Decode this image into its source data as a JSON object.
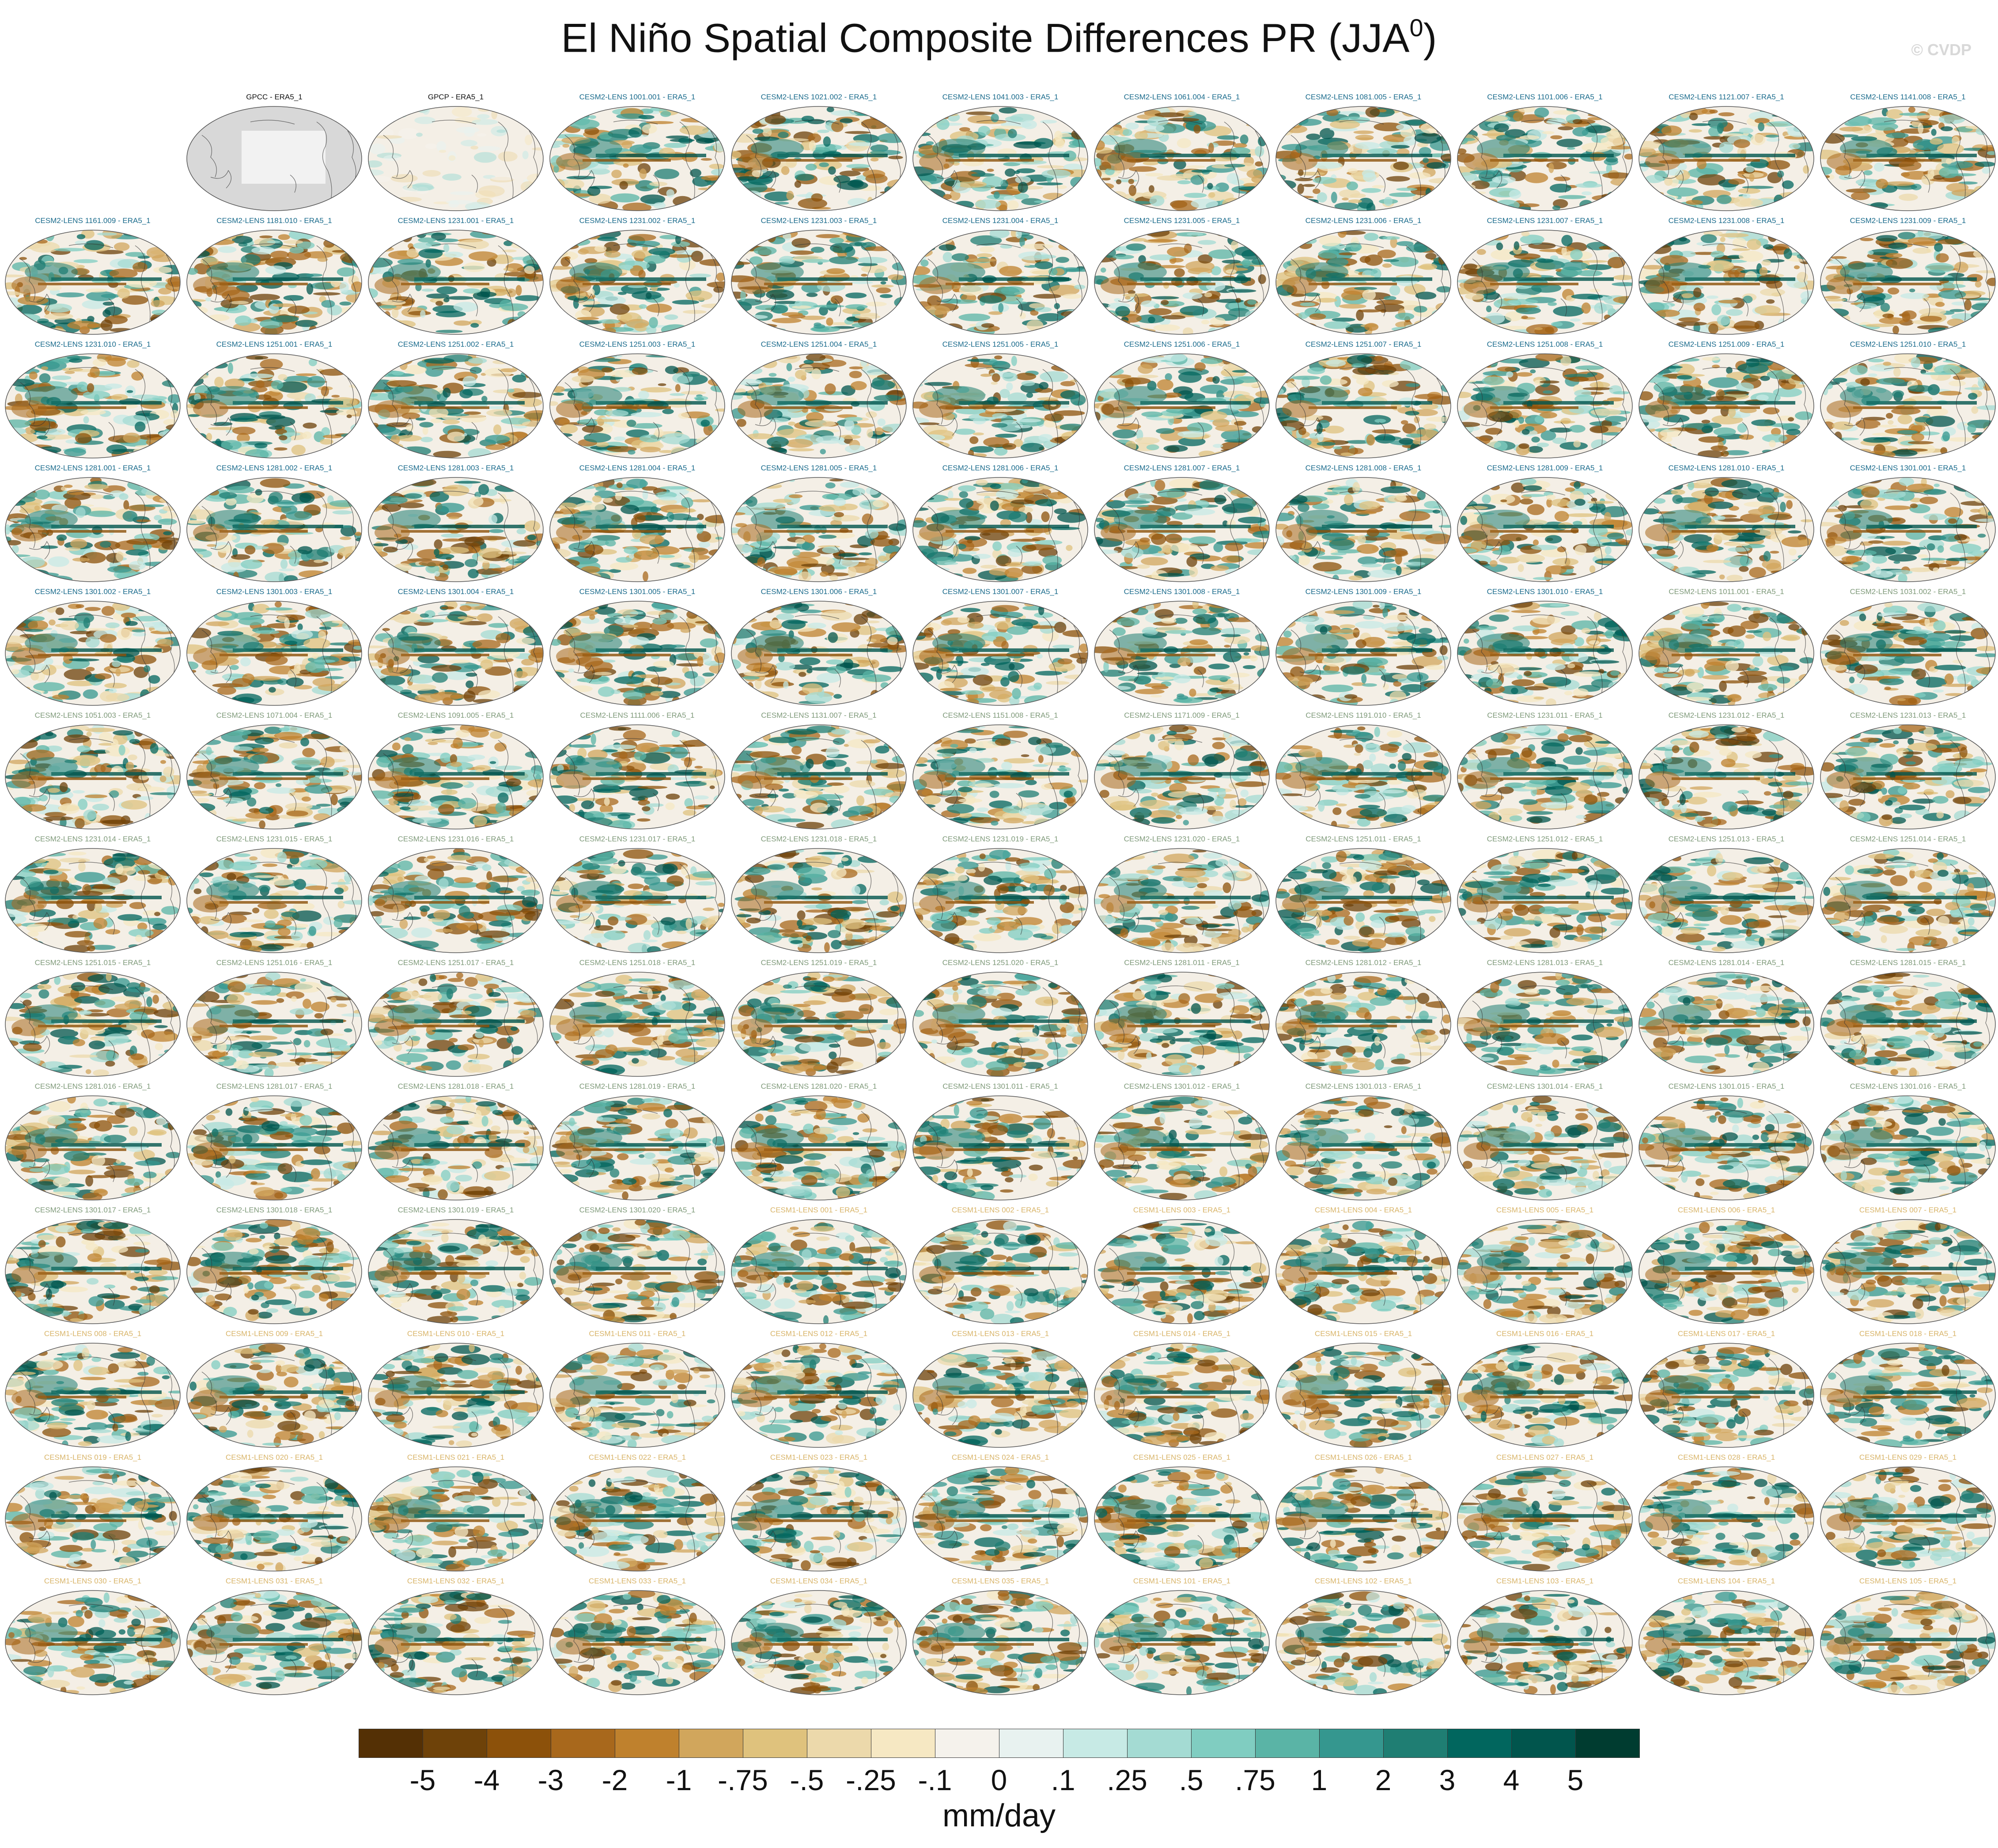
{
  "title": "El Niño Spatial Composite Differences PR (JJA",
  "title_superscript": "0",
  "title_suffix": ")",
  "watermark": "© CVDP",
  "colors": {
    "obs_title": "#111111",
    "cesm2_title": "#1a6b8c",
    "cesm2b_title": "#7f9a7a",
    "cesm1_title": "#d9b56a",
    "land": "#d8d8d8",
    "coast": "#333333",
    "map_bg": "#f4efe6"
  },
  "panels": [
    {
      "label": "GPCC - ERA5_1",
      "group": "obs",
      "style": "land"
    },
    {
      "label": "GPCP - ERA5_1",
      "group": "obs",
      "style": "obs"
    },
    {
      "label": "CESM2-LENS 1001.001 - ERA5_1",
      "group": "cesm2"
    },
    {
      "label": "CESM2-LENS 1021.002 - ERA5_1",
      "group": "cesm2"
    },
    {
      "label": "CESM2-LENS 1041.003 - ERA5_1",
      "group": "cesm2"
    },
    {
      "label": "CESM2-LENS 1061.004 - ERA5_1",
      "group": "cesm2"
    },
    {
      "label": "CESM2-LENS 1081.005 - ERA5_1",
      "group": "cesm2"
    },
    {
      "label": "CESM2-LENS 1101.006 - ERA5_1",
      "group": "cesm2"
    },
    {
      "label": "CESM2-LENS 1121.007 - ERA5_1",
      "group": "cesm2"
    },
    {
      "label": "CESM2-LENS 1141.008 - ERA5_1",
      "group": "cesm2"
    },
    {
      "label": "CESM2-LENS 1161.009 - ERA5_1",
      "group": "cesm2"
    },
    {
      "label": "CESM2-LENS 1181.010 - ERA5_1",
      "group": "cesm2"
    },
    {
      "label": "CESM2-LENS 1231.001 - ERA5_1",
      "group": "cesm2"
    },
    {
      "label": "CESM2-LENS 1231.002 - ERA5_1",
      "group": "cesm2"
    },
    {
      "label": "CESM2-LENS 1231.003 - ERA5_1",
      "group": "cesm2"
    },
    {
      "label": "CESM2-LENS 1231.004 - ERA5_1",
      "group": "cesm2"
    },
    {
      "label": "CESM2-LENS 1231.005 - ERA5_1",
      "group": "cesm2"
    },
    {
      "label": "CESM2-LENS 1231.006 - ERA5_1",
      "group": "cesm2"
    },
    {
      "label": "CESM2-LENS 1231.007 - ERA5_1",
      "group": "cesm2"
    },
    {
      "label": "CESM2-LENS 1231.008 - ERA5_1",
      "group": "cesm2"
    },
    {
      "label": "CESM2-LENS 1231.009 - ERA5_1",
      "group": "cesm2"
    },
    {
      "label": "CESM2-LENS 1231.010 - ERA5_1",
      "group": "cesm2"
    },
    {
      "label": "CESM2-LENS 1251.001 - ERA5_1",
      "group": "cesm2"
    },
    {
      "label": "CESM2-LENS 1251.002 - ERA5_1",
      "group": "cesm2"
    },
    {
      "label": "CESM2-LENS 1251.003 - ERA5_1",
      "group": "cesm2"
    },
    {
      "label": "CESM2-LENS 1251.004 - ERA5_1",
      "group": "cesm2"
    },
    {
      "label": "CESM2-LENS 1251.005 - ERA5_1",
      "group": "cesm2"
    },
    {
      "label": "CESM2-LENS 1251.006 - ERA5_1",
      "group": "cesm2"
    },
    {
      "label": "CESM2-LENS 1251.007 - ERA5_1",
      "group": "cesm2"
    },
    {
      "label": "CESM2-LENS 1251.008 - ERA5_1",
      "group": "cesm2"
    },
    {
      "label": "CESM2-LENS 1251.009 - ERA5_1",
      "group": "cesm2"
    },
    {
      "label": "CESM2-LENS 1251.010 - ERA5_1",
      "group": "cesm2"
    },
    {
      "label": "CESM2-LENS 1281.001 - ERA5_1",
      "group": "cesm2"
    },
    {
      "label": "CESM2-LENS 1281.002 - ERA5_1",
      "group": "cesm2"
    },
    {
      "label": "CESM2-LENS 1281.003 - ERA5_1",
      "group": "cesm2"
    },
    {
      "label": "CESM2-LENS 1281.004 - ERA5_1",
      "group": "cesm2"
    },
    {
      "label": "CESM2-LENS 1281.005 - ERA5_1",
      "group": "cesm2"
    },
    {
      "label": "CESM2-LENS 1281.006 - ERA5_1",
      "group": "cesm2"
    },
    {
      "label": "CESM2-LENS 1281.007 - ERA5_1",
      "group": "cesm2"
    },
    {
      "label": "CESM2-LENS 1281.008 - ERA5_1",
      "group": "cesm2"
    },
    {
      "label": "CESM2-LENS 1281.009 - ERA5_1",
      "group": "cesm2"
    },
    {
      "label": "CESM2-LENS 1281.010 - ERA5_1",
      "group": "cesm2"
    },
    {
      "label": "CESM2-LENS 1301.001 - ERA5_1",
      "group": "cesm2"
    },
    {
      "label": "CESM2-LENS 1301.002 - ERA5_1",
      "group": "cesm2"
    },
    {
      "label": "CESM2-LENS 1301.003 - ERA5_1",
      "group": "cesm2"
    },
    {
      "label": "CESM2-LENS 1301.004 - ERA5_1",
      "group": "cesm2"
    },
    {
      "label": "CESM2-LENS 1301.005 - ERA5_1",
      "group": "cesm2"
    },
    {
      "label": "CESM2-LENS 1301.006 - ERA5_1",
      "group": "cesm2"
    },
    {
      "label": "CESM2-LENS 1301.007 - ERA5_1",
      "group": "cesm2"
    },
    {
      "label": "CESM2-LENS 1301.008 - ERA5_1",
      "group": "cesm2"
    },
    {
      "label": "CESM2-LENS 1301.009 - ERA5_1",
      "group": "cesm2"
    },
    {
      "label": "CESM2-LENS 1301.010 - ERA5_1",
      "group": "cesm2"
    },
    {
      "label": "CESM2-LENS 1011.001 - ERA5_1",
      "group": "cesm2b"
    },
    {
      "label": "CESM2-LENS 1031.002 - ERA5_1",
      "group": "cesm2b"
    },
    {
      "label": "CESM2-LENS 1051.003 - ERA5_1",
      "group": "cesm2b"
    },
    {
      "label": "CESM2-LENS 1071.004 - ERA5_1",
      "group": "cesm2b"
    },
    {
      "label": "CESM2-LENS 1091.005 - ERA5_1",
      "group": "cesm2b"
    },
    {
      "label": "CESM2-LENS 1111.006 - ERA5_1",
      "group": "cesm2b"
    },
    {
      "label": "CESM2-LENS 1131.007 - ERA5_1",
      "group": "cesm2b"
    },
    {
      "label": "CESM2-LENS 1151.008 - ERA5_1",
      "group": "cesm2b"
    },
    {
      "label": "CESM2-LENS 1171.009 - ERA5_1",
      "group": "cesm2b"
    },
    {
      "label": "CESM2-LENS 1191.010 - ERA5_1",
      "group": "cesm2b"
    },
    {
      "label": "CESM2-LENS 1231.011 - ERA5_1",
      "group": "cesm2b"
    },
    {
      "label": "CESM2-LENS 1231.012 - ERA5_1",
      "group": "cesm2b"
    },
    {
      "label": "CESM2-LENS 1231.013 - ERA5_1",
      "group": "cesm2b"
    },
    {
      "label": "CESM2-LENS 1231.014 - ERA5_1",
      "group": "cesm2b"
    },
    {
      "label": "CESM2-LENS 1231.015 - ERA5_1",
      "group": "cesm2b"
    },
    {
      "label": "CESM2-LENS 1231.016 - ERA5_1",
      "group": "cesm2b"
    },
    {
      "label": "CESM2-LENS 1231.017 - ERA5_1",
      "group": "cesm2b"
    },
    {
      "label": "CESM2-LENS 1231.018 - ERA5_1",
      "group": "cesm2b"
    },
    {
      "label": "CESM2-LENS 1231.019 - ERA5_1",
      "group": "cesm2b"
    },
    {
      "label": "CESM2-LENS 1231.020 - ERA5_1",
      "group": "cesm2b"
    },
    {
      "label": "CESM2-LENS 1251.011 - ERA5_1",
      "group": "cesm2b"
    },
    {
      "label": "CESM2-LENS 1251.012 - ERA5_1",
      "group": "cesm2b"
    },
    {
      "label": "CESM2-LENS 1251.013 - ERA5_1",
      "group": "cesm2b"
    },
    {
      "label": "CESM2-LENS 1251.014 - ERA5_1",
      "group": "cesm2b"
    },
    {
      "label": "CESM2-LENS 1251.015 - ERA5_1",
      "group": "cesm2b"
    },
    {
      "label": "CESM2-LENS 1251.016 - ERA5_1",
      "group": "cesm2b"
    },
    {
      "label": "CESM2-LENS 1251.017 - ERA5_1",
      "group": "cesm2b"
    },
    {
      "label": "CESM2-LENS 1251.018 - ERA5_1",
      "group": "cesm2b"
    },
    {
      "label": "CESM2-LENS 1251.019 - ERA5_1",
      "group": "cesm2b"
    },
    {
      "label": "CESM2-LENS 1251.020 - ERA5_1",
      "group": "cesm2b"
    },
    {
      "label": "CESM2-LENS 1281.011 - ERA5_1",
      "group": "cesm2b"
    },
    {
      "label": "CESM2-LENS 1281.012 - ERA5_1",
      "group": "cesm2b"
    },
    {
      "label": "CESM2-LENS 1281.013 - ERA5_1",
      "group": "cesm2b"
    },
    {
      "label": "CESM2-LENS 1281.014 - ERA5_1",
      "group": "cesm2b"
    },
    {
      "label": "CESM2-LENS 1281.015 - ERA5_1",
      "group": "cesm2b"
    },
    {
      "label": "CESM2-LENS 1281.016 - ERA5_1",
      "group": "cesm2b"
    },
    {
      "label": "CESM2-LENS 1281.017 - ERA5_1",
      "group": "cesm2b"
    },
    {
      "label": "CESM2-LENS 1281.018 - ERA5_1",
      "group": "cesm2b"
    },
    {
      "label": "CESM2-LENS 1281.019 - ERA5_1",
      "group": "cesm2b"
    },
    {
      "label": "CESM2-LENS 1281.020 - ERA5_1",
      "group": "cesm2b"
    },
    {
      "label": "CESM2-LENS 1301.011 - ERA5_1",
      "group": "cesm2b"
    },
    {
      "label": "CESM2-LENS 1301.012 - ERA5_1",
      "group": "cesm2b"
    },
    {
      "label": "CESM2-LENS 1301.013 - ERA5_1",
      "group": "cesm2b"
    },
    {
      "label": "CESM2-LENS 1301.014 - ERA5_1",
      "group": "cesm2b"
    },
    {
      "label": "CESM2-LENS 1301.015 - ERA5_1",
      "group": "cesm2b"
    },
    {
      "label": "CESM2-LENS 1301.016 - ERA5_1",
      "group": "cesm2b"
    },
    {
      "label": "CESM2-LENS 1301.017 - ERA5_1",
      "group": "cesm2b"
    },
    {
      "label": "CESM2-LENS 1301.018 - ERA5_1",
      "group": "cesm2b"
    },
    {
      "label": "CESM2-LENS 1301.019 - ERA5_1",
      "group": "cesm2b"
    },
    {
      "label": "CESM2-LENS 1301.020 - ERA5_1",
      "group": "cesm2b"
    },
    {
      "label": "CESM1-LENS 001 - ERA5_1",
      "group": "cesm1"
    },
    {
      "label": "CESM1-LENS 002 - ERA5_1",
      "group": "cesm1"
    },
    {
      "label": "CESM1-LENS 003 - ERA5_1",
      "group": "cesm1"
    },
    {
      "label": "CESM1-LENS 004 - ERA5_1",
      "group": "cesm1"
    },
    {
      "label": "CESM1-LENS 005 - ERA5_1",
      "group": "cesm1"
    },
    {
      "label": "CESM1-LENS 006 - ERA5_1",
      "group": "cesm1"
    },
    {
      "label": "CESM1-LENS 007 - ERA5_1",
      "group": "cesm1"
    },
    {
      "label": "CESM1-LENS 008 - ERA5_1",
      "group": "cesm1"
    },
    {
      "label": "CESM1-LENS 009 - ERA5_1",
      "group": "cesm1"
    },
    {
      "label": "CESM1-LENS 010 - ERA5_1",
      "group": "cesm1"
    },
    {
      "label": "CESM1-LENS 011 - ERA5_1",
      "group": "cesm1"
    },
    {
      "label": "CESM1-LENS 012 - ERA5_1",
      "group": "cesm1"
    },
    {
      "label": "CESM1-LENS 013 - ERA5_1",
      "group": "cesm1"
    },
    {
      "label": "CESM1-LENS 014 - ERA5_1",
      "group": "cesm1"
    },
    {
      "label": "CESM1-LENS 015 - ERA5_1",
      "group": "cesm1"
    },
    {
      "label": "CESM1-LENS 016 - ERA5_1",
      "group": "cesm1"
    },
    {
      "label": "CESM1-LENS 017 - ERA5_1",
      "group": "cesm1"
    },
    {
      "label": "CESM1-LENS 018 - ERA5_1",
      "group": "cesm1"
    },
    {
      "label": "CESM1-LENS 019 - ERA5_1",
      "group": "cesm1"
    },
    {
      "label": "CESM1-LENS 020 - ERA5_1",
      "group": "cesm1"
    },
    {
      "label": "CESM1-LENS 021 - ERA5_1",
      "group": "cesm1"
    },
    {
      "label": "CESM1-LENS 022 - ERA5_1",
      "group": "cesm1"
    },
    {
      "label": "CESM1-LENS 023 - ERA5_1",
      "group": "cesm1"
    },
    {
      "label": "CESM1-LENS 024 - ERA5_1",
      "group": "cesm1"
    },
    {
      "label": "CESM1-LENS 025 - ERA5_1",
      "group": "cesm1"
    },
    {
      "label": "CESM1-LENS 026 - ERA5_1",
      "group": "cesm1"
    },
    {
      "label": "CESM1-LENS 027 - ERA5_1",
      "group": "cesm1"
    },
    {
      "label": "CESM1-LENS 028 - ERA5_1",
      "group": "cesm1"
    },
    {
      "label": "CESM1-LENS 029 - ERA5_1",
      "group": "cesm1"
    },
    {
      "label": "CESM1-LENS 030 - ERA5_1",
      "group": "cesm1"
    },
    {
      "label": "CESM1-LENS 031 - ERA5_1",
      "group": "cesm1"
    },
    {
      "label": "CESM1-LENS 032 - ERA5_1",
      "group": "cesm1"
    },
    {
      "label": "CESM1-LENS 033 - ERA5_1",
      "group": "cesm1"
    },
    {
      "label": "CESM1-LENS 034 - ERA5_1",
      "group": "cesm1"
    },
    {
      "label": "CESM1-LENS 035 - ERA5_1",
      "group": "cesm1"
    },
    {
      "label": "CESM1-LENS 101 - ERA5_1",
      "group": "cesm1"
    },
    {
      "label": "CESM1-LENS 102 - ERA5_1",
      "group": "cesm1"
    },
    {
      "label": "CESM1-LENS 103 - ERA5_1",
      "group": "cesm1"
    },
    {
      "label": "CESM1-LENS 104 - ERA5_1",
      "group": "cesm1"
    },
    {
      "label": "CESM1-LENS 105 - ERA5_1",
      "group": "cesm1"
    }
  ],
  "chart_data": {
    "type": "heatmap",
    "title": "El Niño Spatial Composite Differences PR (JJA⁰)",
    "layout": "13 rows x 11 columns of global precipitation difference maps; first cell blank",
    "colorbar": {
      "units": "mm/day",
      "labels": [
        "-5",
        "-4",
        "-3",
        "-2",
        "-1",
        "-.75",
        "-.5",
        "-.25",
        "-.1",
        "0",
        ".1",
        ".25",
        ".5",
        ".75",
        "1",
        "2",
        "3",
        "4",
        "5"
      ],
      "colors": [
        "#543005",
        "#6e4209",
        "#8c510a",
        "#a8681c",
        "#bf812d",
        "#d1a65c",
        "#dfc27d",
        "#ecd9ab",
        "#f6e8c3",
        "#f5f2ec",
        "#e8f2f0",
        "#c7eae5",
        "#a4dbd3",
        "#80cdc1",
        "#5ab4a6",
        "#35978f",
        "#1f7e73",
        "#01665e",
        "#01554d",
        "#003c30"
      ]
    }
  }
}
